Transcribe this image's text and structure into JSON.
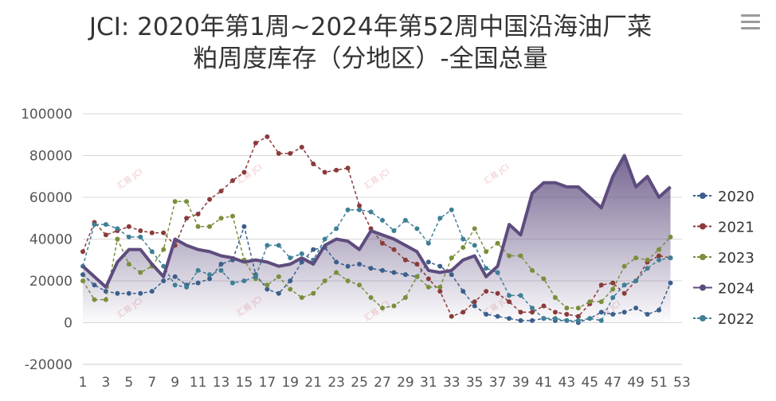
{
  "chart_data": {
    "type": "line",
    "title_lines": [
      "JCI: 2020年第1周~2024年第52周中国沿海油厂菜",
      "粕周度库存（分地区）-全国总量"
    ],
    "ylim": [
      -20000,
      100000
    ],
    "y_ticks": [
      100000,
      80000,
      60000,
      40000,
      20000,
      0,
      -20000
    ],
    "y_tick_labels": [
      "100000",
      "80000",
      "60000",
      "40000",
      "20000",
      "0",
      "-20000"
    ],
    "x_range": [
      1,
      53
    ],
    "x_ticks": [
      1,
      3,
      5,
      7,
      9,
      11,
      13,
      15,
      17,
      19,
      21,
      23,
      25,
      27,
      29,
      31,
      33,
      35,
      37,
      39,
      41,
      43,
      45,
      47,
      49,
      51,
      53
    ],
    "x_tick_labels": [
      "1",
      "3",
      "5",
      "7",
      "9",
      "11",
      "13",
      "15",
      "17",
      "19",
      "21",
      "23",
      "25",
      "27",
      "29",
      "31",
      "33",
      "35",
      "37",
      "39",
      "41",
      "43",
      "45",
      "47",
      "49",
      "51",
      "53"
    ],
    "grid": true,
    "legend_position": "right",
    "watermark_text": "汇易 JCI",
    "series": [
      {
        "name": "2020",
        "color": "#3b5f8c",
        "style": "dashed",
        "values": [
          23000,
          18000,
          15000,
          14000,
          14000,
          14000,
          15000,
          20000,
          22000,
          18000,
          19000,
          21000,
          28000,
          30000,
          46000,
          23000,
          16000,
          14000,
          20000,
          29000,
          35000,
          36000,
          29000,
          27000,
          28000,
          26000,
          25000,
          24000,
          23000,
          22000,
          29000,
          27000,
          23000,
          15000,
          8000,
          4000,
          3000,
          2000,
          1000,
          1000,
          2000,
          1000,
          1000,
          0,
          2000,
          5000,
          4000,
          5000,
          7000,
          4000,
          6000,
          19000
        ]
      },
      {
        "name": "2021",
        "color": "#8b3a3a",
        "style": "dashed",
        "values": [
          34000,
          48000,
          42000,
          44000,
          46000,
          44000,
          43000,
          43000,
          37000,
          50000,
          52000,
          59000,
          63000,
          68000,
          72000,
          86000,
          89000,
          81000,
          81000,
          84000,
          76000,
          72000,
          73000,
          74000,
          56000,
          45000,
          38000,
          35000,
          30000,
          28000,
          21000,
          15000,
          3000,
          5000,
          10000,
          15000,
          14000,
          10000,
          5000,
          5000,
          8000,
          5000,
          4000,
          3000,
          9000,
          18000,
          19000,
          14000,
          20000,
          29000,
          32000,
          31000
        ]
      },
      {
        "name": "2023",
        "color": "#7a8f3c",
        "style": "dashed",
        "values": [
          20000,
          11000,
          11000,
          40000,
          28000,
          24000,
          27000,
          35000,
          58000,
          58000,
          46000,
          46000,
          50000,
          51000,
          30000,
          21000,
          18000,
          22000,
          16000,
          12000,
          14000,
          20000,
          24000,
          20000,
          18000,
          12000,
          7000,
          8000,
          12000,
          22000,
          17000,
          17000,
          31000,
          36000,
          45000,
          34000,
          38000,
          32000,
          32000,
          25000,
          21000,
          12000,
          7000,
          7000,
          10000,
          10000,
          16000,
          27000,
          31000,
          30000,
          35000,
          41000
        ]
      },
      {
        "name": "2024",
        "color": "#5e4c7e",
        "style": "solid",
        "values": [
          27000,
          22000,
          17000,
          29000,
          35000,
          35000,
          28000,
          22000,
          40000,
          37000,
          35000,
          34000,
          32000,
          31000,
          29000,
          30000,
          29000,
          27000,
          28000,
          31000,
          28000,
          37000,
          40000,
          39000,
          35000,
          44000,
          42000,
          40000,
          37000,
          34000,
          25000,
          24000,
          25000,
          30000,
          32000,
          22000,
          27000,
          47000,
          42000,
          62000,
          67000,
          67000,
          65000,
          65000,
          60000,
          55000,
          70000,
          80000,
          65000,
          70000,
          60000,
          65000
        ]
      },
      {
        "name": "2022",
        "color": "#3f7f96",
        "style": "dashed",
        "values": [
          27000,
          47000,
          47000,
          45000,
          41000,
          41000,
          34000,
          27000,
          18000,
          17000,
          25000,
          23000,
          25000,
          19000,
          20000,
          22000,
          37000,
          37000,
          31000,
          33000,
          30000,
          40000,
          45000,
          54000,
          54000,
          53000,
          49000,
          44000,
          49000,
          45000,
          38000,
          50000,
          54000,
          40000,
          37000,
          26000,
          24000,
          13000,
          13000,
          7000,
          2000,
          2000,
          1000,
          1000,
          2000,
          1000,
          12000,
          18000,
          20000,
          26000,
          30000,
          31000
        ]
      }
    ]
  }
}
